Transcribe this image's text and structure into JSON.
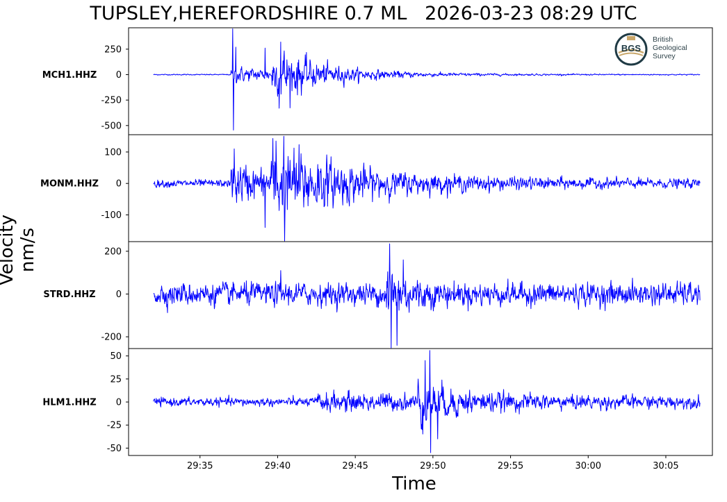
{
  "title": "TUPSLEY,HEREFORDSHIRE 0.7 ML   2026-03-23 08:29 UTC",
  "ylabel": "Velocity nm/s",
  "xlabel": "Time",
  "logo": {
    "mark": "BGS",
    "lines": [
      "British",
      "Geological",
      "Survey"
    ]
  },
  "colors": {
    "trace": "#0000ff",
    "axis": "#000000"
  },
  "chart_data": {
    "type": "line",
    "x_ticks": [
      "29:35",
      "29:40",
      "29:45",
      "29:50",
      "29:55",
      "30:00",
      "30:05"
    ],
    "x_tick_seconds": [
      35,
      40,
      45,
      50,
      55,
      60,
      65
    ],
    "x_range_seconds": [
      30.4,
      68.0
    ],
    "trace_range_seconds": [
      32.0,
      67.2
    ],
    "grid": false,
    "panels": [
      {
        "station": "MCH1.HHZ",
        "ylim": [
          -590,
          460
        ],
        "yticks": [
          250,
          0,
          -250,
          -500
        ],
        "ytick_labels": [
          "250",
          "0",
          "-250",
          "-500"
        ],
        "noise": 4,
        "events": [
          {
            "t": 37.0,
            "amp": 60,
            "decay": 5.0
          },
          {
            "t": 39.6,
            "amp": 130,
            "decay": 1.6
          },
          {
            "t": 40.2,
            "amp": 90,
            "decay": 4.0
          }
        ],
        "peaks": [
          {
            "t": 37.1,
            "v": 450
          },
          {
            "t": 37.15,
            "v": -545
          },
          {
            "t": 37.3,
            "v": 270
          },
          {
            "t": 40.2,
            "v": 320
          },
          {
            "t": 39.2,
            "v": 260
          },
          {
            "t": 40.1,
            "v": -330
          }
        ]
      },
      {
        "station": "MONM.HHZ",
        "ylim": [
          -185,
          155
        ],
        "yticks": [
          100,
          0,
          -100
        ],
        "ytick_labels": [
          "100",
          "0",
          "-100"
        ],
        "noise": 9,
        "events": [
          {
            "t": 37.0,
            "amp": 45,
            "decay": 3.5
          },
          {
            "t": 39.5,
            "amp": 70,
            "decay": 3.2
          },
          {
            "t": 41.0,
            "amp": 25,
            "decay": 10.0
          }
        ],
        "peaks": [
          {
            "t": 40.4,
            "v": 150
          },
          {
            "t": 40.45,
            "v": -185
          },
          {
            "t": 39.9,
            "v": 135
          },
          {
            "t": 37.2,
            "v": 110
          },
          {
            "t": 39.2,
            "v": -140
          }
        ]
      },
      {
        "station": "STRD.HHZ",
        "ylim": [
          -255,
          245
        ],
        "yticks": [
          200,
          0,
          -200
        ],
        "ytick_labels": [
          "200",
          "0",
          "-200"
        ],
        "noise": 40,
        "events": [
          {
            "t": 47.0,
            "amp": 90,
            "decay": 1.3
          }
        ],
        "peaks": [
          {
            "t": 47.2,
            "v": 235
          },
          {
            "t": 47.3,
            "v": -255
          },
          {
            "t": 47.7,
            "v": -240
          },
          {
            "t": 48.1,
            "v": 160
          },
          {
            "t": 40.2,
            "v": 110
          }
        ]
      },
      {
        "station": "HLM1.HHZ",
        "ylim": [
          -58,
          58
        ],
        "yticks": [
          50,
          25,
          0,
          -25,
          -50
        ],
        "ytick_labels": [
          "50",
          "25",
          "0",
          "-25",
          "-50"
        ],
        "noise": 3.5,
        "events": [
          {
            "t": 42.5,
            "amp": 5,
            "decay": 20.0
          },
          {
            "t": 49.0,
            "amp": 14,
            "decay": 2.5
          }
        ],
        "peaks": [
          {
            "t": 49.8,
            "v": 56
          },
          {
            "t": 49.85,
            "v": -55
          },
          {
            "t": 49.5,
            "v": 45
          },
          {
            "t": 50.3,
            "v": -40
          },
          {
            "t": 49.3,
            "v": -30
          }
        ]
      }
    ]
  }
}
